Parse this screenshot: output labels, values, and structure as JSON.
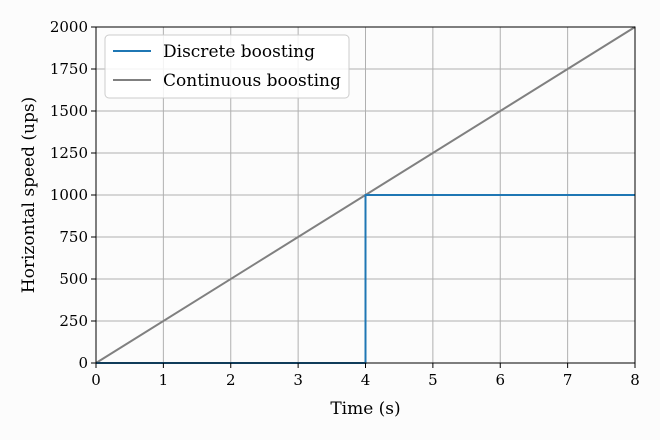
{
  "chart_data": {
    "type": "line",
    "xlabel": "Time (s)",
    "ylabel": "Horizontal speed (ups)",
    "xlim": [
      0,
      8
    ],
    "ylim": [
      0,
      2000
    ],
    "x_ticks": [
      "0",
      "1",
      "2",
      "3",
      "4",
      "5",
      "6",
      "7",
      "8"
    ],
    "y_ticks": [
      "0",
      "250",
      "500",
      "750",
      "1000",
      "1250",
      "1500",
      "1750",
      "2000"
    ],
    "grid": true,
    "legend_position": "top-left",
    "series": [
      {
        "name": "Discrete boosting",
        "color": "#1f77b4",
        "step": true,
        "points": [
          [
            0,
            0
          ],
          [
            4,
            0
          ],
          [
            4,
            1000
          ],
          [
            8,
            1000
          ]
        ]
      },
      {
        "name": "Continuous boosting",
        "color": "#808080",
        "step": false,
        "points": [
          [
            0,
            0
          ],
          [
            8,
            2000
          ]
        ]
      }
    ]
  }
}
